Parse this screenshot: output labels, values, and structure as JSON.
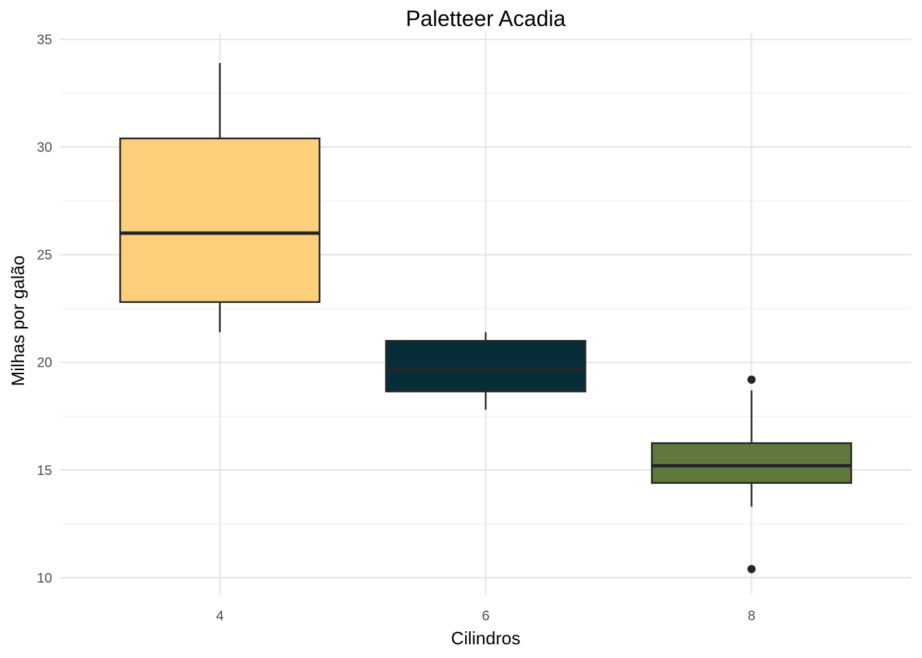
{
  "chart_data": {
    "type": "boxplot",
    "title": "Paletteer Acadia",
    "xlabel": "Cilindros",
    "ylabel": "Milhas por galão",
    "categories": [
      "4",
      "6",
      "8"
    ],
    "ylim": [
      9.2,
      35.3
    ],
    "yticks": [
      10,
      15,
      20,
      25,
      30,
      35
    ],
    "yticks_minor": [
      12.5,
      17.5,
      22.5,
      27.5,
      32.5
    ],
    "grid": true,
    "legend": "none",
    "boxes": [
      {
        "category": "4",
        "whisker_low": 21.4,
        "q1": 22.8,
        "median": 26.0,
        "q3": 30.4,
        "whisker_high": 33.9,
        "outliers": [],
        "color": "#FDCF7A"
      },
      {
        "category": "6",
        "whisker_low": 17.8,
        "q1": 18.65,
        "median": 19.7,
        "q3": 21.0,
        "whisker_high": 21.4,
        "outliers": [],
        "color": "#072D38"
      },
      {
        "category": "8",
        "whisker_low": 13.3,
        "q1": 14.4,
        "median": 15.2,
        "q3": 16.25,
        "whisker_high": 18.7,
        "outliers": [
          10.4,
          19.2
        ],
        "color": "#60783C"
      }
    ]
  }
}
